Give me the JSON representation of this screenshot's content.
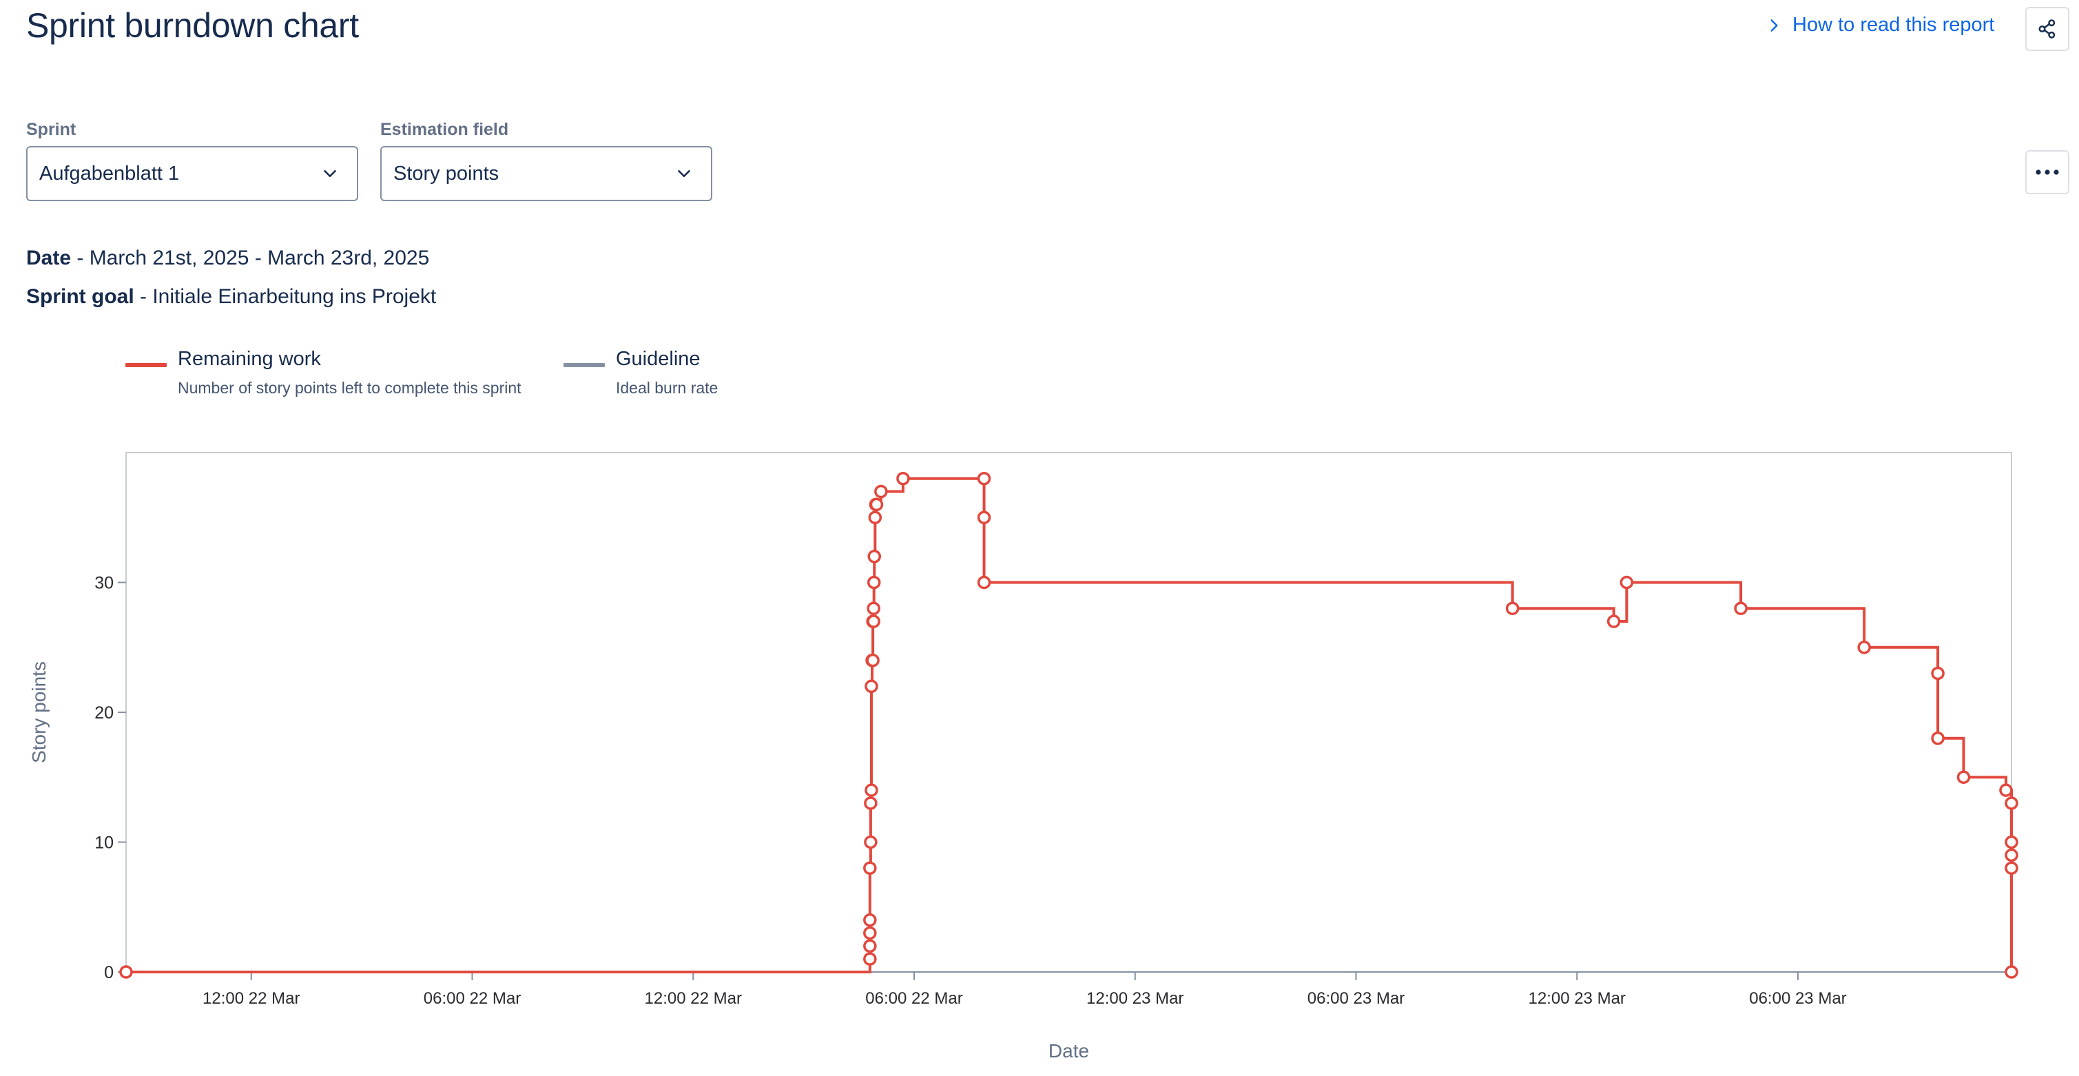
{
  "header": {
    "title": "Sprint burndown chart",
    "help_link": "How to read this report"
  },
  "filters": {
    "sprint_label": "Sprint",
    "sprint_value": "Aufgabenblatt 1",
    "estimation_label": "Estimation field",
    "estimation_value": "Story points"
  },
  "info": {
    "date_label": "Date",
    "date_value": " - March 21st, 2025 - March 23rd, 2025",
    "goal_label": "Sprint goal",
    "goal_value": " - Initiale Einarbeitung ins Projekt"
  },
  "legend": [
    {
      "title": "Remaining work",
      "desc": "Number of story points left to complete this sprint",
      "color": "#e2483d"
    },
    {
      "title": "Guideline",
      "desc": "Ideal burn rate",
      "color": "#8590a2"
    }
  ],
  "icons": {
    "help": "chevron-right-icon",
    "share": "share-icon",
    "more": "more-horizontal-icon",
    "select": "chevron-down-icon"
  },
  "chart_data": {
    "type": "line",
    "step": "after",
    "xlabel": "Date",
    "ylabel": "Story points",
    "ylim": [
      0,
      40
    ],
    "yticks": [
      0,
      10,
      20,
      30
    ],
    "xlim": [
      0,
      51.2
    ],
    "xtick_positions": [
      3.4,
      9.4,
      15.4,
      21.4,
      27.4,
      33.4,
      39.4,
      45.4
    ],
    "xtick_labels": [
      "12:00 22 Mar",
      "06:00 22 Mar",
      "12:00 22 Mar",
      "06:00 22 Mar",
      "12:00 23 Mar",
      "06:00 23 Mar",
      "12:00 23 Mar",
      "06:00 23 Mar"
    ],
    "grid": false,
    "series": [
      {
        "name": "Remaining work",
        "color": "#e2483d",
        "x": [
          0,
          20.2,
          20.2,
          20.2,
          20.2,
          20.2,
          20.22,
          20.22,
          20.24,
          20.24,
          20.26,
          20.28,
          20.28,
          20.3,
          20.3,
          20.31,
          20.32,
          20.34,
          20.36,
          20.38,
          20.5,
          21.1,
          23.3,
          23.3,
          23.3,
          37.65,
          40.4,
          40.75,
          43.85,
          47.2,
          49.2,
          49.2,
          49.9,
          51.05,
          51.2,
          51.2,
          51.2,
          51.2,
          51.2
        ],
        "y": [
          0,
          1,
          2,
          3,
          4,
          8,
          10,
          13,
          14,
          22,
          24,
          24,
          27,
          27,
          28,
          30,
          32,
          35,
          36,
          36,
          37,
          38,
          38,
          35,
          30,
          28,
          27,
          30,
          28,
          25,
          23,
          18,
          15,
          14,
          13,
          10,
          9,
          8,
          0
        ]
      }
    ]
  }
}
